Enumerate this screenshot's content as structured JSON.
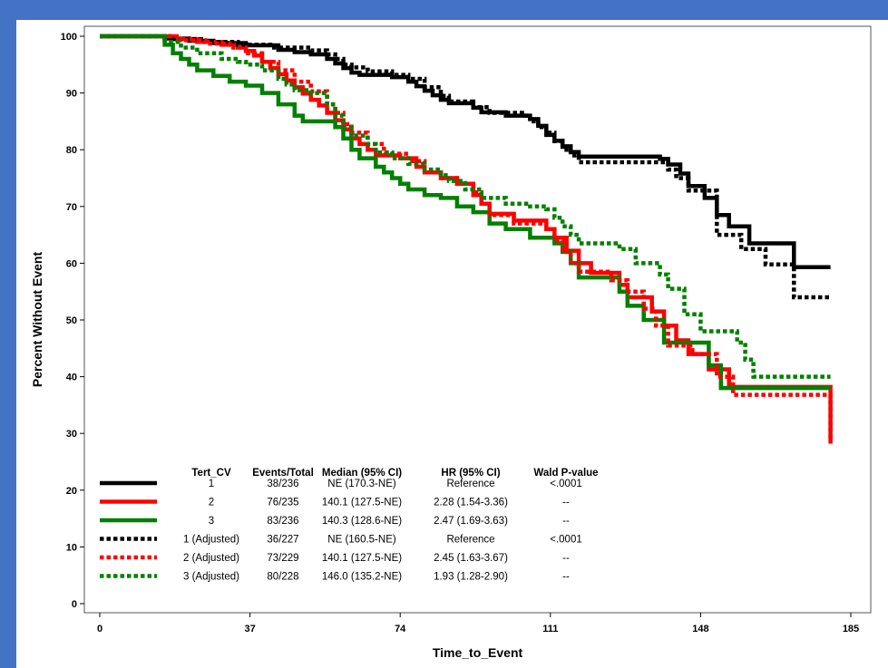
{
  "chart_data": {
    "type": "line",
    "title": "",
    "xlabel": "Time_to_Event",
    "ylabel": "Percent Without Event",
    "xlim": [
      0,
      185
    ],
    "ylim": [
      0,
      100
    ],
    "x_ticks": [
      "0",
      "37",
      "74",
      "111",
      "148",
      "185"
    ],
    "y_ticks": [
      "0",
      "10",
      "20",
      "30",
      "40",
      "50",
      "60",
      "70",
      "80",
      "90",
      "100"
    ],
    "grid": false,
    "legend_position": "bottom-left inside plot",
    "legend_headers": [
      "Tert_CV",
      "Events/Total",
      "Median (95% CI)",
      "HR (95% CI)",
      "Wald P-value"
    ],
    "series": [
      {
        "name": "1",
        "color": "#000000",
        "dash": "solid",
        "events_total": "38/236",
        "median": "NE (170.3-NE)",
        "hr": "Reference",
        "p": "<.0001",
        "points": [
          [
            0,
            100
          ],
          [
            10,
            100
          ],
          [
            16,
            99.6
          ],
          [
            22,
            99.2
          ],
          [
            28,
            98.8
          ],
          [
            36,
            98.4
          ],
          [
            44,
            97.6
          ],
          [
            48,
            97.2
          ],
          [
            52,
            96.8
          ],
          [
            56,
            96
          ],
          [
            58,
            95.2
          ],
          [
            60,
            94.4
          ],
          [
            62,
            93.6
          ],
          [
            64,
            93.2
          ],
          [
            72,
            92.8
          ],
          [
            76,
            92
          ],
          [
            78,
            91.2
          ],
          [
            80,
            90.4
          ],
          [
            82,
            89.6
          ],
          [
            84,
            88.8
          ],
          [
            86,
            88.2
          ],
          [
            92,
            87.4
          ],
          [
            94,
            86.6
          ],
          [
            100,
            86
          ],
          [
            106,
            85.4
          ],
          [
            108,
            84.2
          ],
          [
            110,
            82.6
          ],
          [
            112,
            81.6
          ],
          [
            114,
            80.6
          ],
          [
            116,
            79.6
          ],
          [
            118,
            78.8
          ],
          [
            138,
            78.4
          ],
          [
            140,
            77.4
          ],
          [
            143,
            75.8
          ],
          [
            145,
            73.6
          ],
          [
            149,
            71.5
          ],
          [
            152,
            68.5
          ],
          [
            155,
            66.5
          ],
          [
            160,
            63.5
          ],
          [
            171,
            59.3
          ],
          [
            180,
            59.3
          ]
        ]
      },
      {
        "name": "2",
        "color": "#ff0000",
        "dash": "solid",
        "events_total": "76/235",
        "median": "140.1 (127.5-NE)",
        "hr": "2.28 (1.54-3.36)",
        "p": "--",
        "points": [
          [
            0,
            100
          ],
          [
            14,
            100
          ],
          [
            18,
            99.5
          ],
          [
            24,
            99
          ],
          [
            30,
            98.5
          ],
          [
            34,
            98
          ],
          [
            36,
            97.4
          ],
          [
            38,
            96.6
          ],
          [
            40,
            95.5
          ],
          [
            42,
            94.4
          ],
          [
            44,
            93.3
          ],
          [
            46,
            92.2
          ],
          [
            48,
            91
          ],
          [
            50,
            89.9
          ],
          [
            52,
            88.8
          ],
          [
            54,
            87.8
          ],
          [
            56,
            86.5
          ],
          [
            58,
            85.2
          ],
          [
            60,
            83.6
          ],
          [
            62,
            82
          ],
          [
            64,
            81
          ],
          [
            66,
            80
          ],
          [
            68,
            79
          ],
          [
            74,
            78.5
          ],
          [
            78,
            77
          ],
          [
            80,
            76
          ],
          [
            84,
            75
          ],
          [
            88,
            74
          ],
          [
            92,
            72
          ],
          [
            94,
            70.5
          ],
          [
            96,
            68.7
          ],
          [
            102,
            67.5
          ],
          [
            110,
            66
          ],
          [
            112,
            64.5
          ],
          [
            115,
            62.2
          ],
          [
            118,
            60
          ],
          [
            121,
            58.3
          ],
          [
            128,
            56.2
          ],
          [
            130,
            54
          ],
          [
            136,
            51.5
          ],
          [
            139,
            49
          ],
          [
            142,
            46.4
          ],
          [
            145,
            44
          ],
          [
            150,
            41.3
          ],
          [
            155,
            38.2
          ],
          [
            180,
            38.2
          ],
          [
            180,
            28.2
          ]
        ]
      },
      {
        "name": "3",
        "color": "#008000",
        "dash": "solid",
        "events_total": "83/236",
        "median": "140.3 (128.6-NE)",
        "hr": "2.47 (1.69-3.63)",
        "p": "--",
        "points": [
          [
            0,
            100
          ],
          [
            14,
            100
          ],
          [
            16,
            98.5
          ],
          [
            18,
            97
          ],
          [
            20,
            96
          ],
          [
            22,
            95
          ],
          [
            24,
            94
          ],
          [
            28,
            93
          ],
          [
            32,
            92
          ],
          [
            36,
            91.3
          ],
          [
            40,
            90
          ],
          [
            44,
            88
          ],
          [
            48,
            86
          ],
          [
            50,
            85
          ],
          [
            58,
            84
          ],
          [
            60,
            82
          ],
          [
            62,
            80
          ],
          [
            64,
            78.5
          ],
          [
            68,
            77
          ],
          [
            70,
            76
          ],
          [
            72,
            75
          ],
          [
            74,
            74
          ],
          [
            76,
            73
          ],
          [
            80,
            72
          ],
          [
            84,
            71.5
          ],
          [
            88,
            70
          ],
          [
            92,
            69
          ],
          [
            96,
            67
          ],
          [
            100,
            66
          ],
          [
            106,
            64.5
          ],
          [
            112,
            63.5
          ],
          [
            114,
            62
          ],
          [
            116,
            60
          ],
          [
            118,
            57.5
          ],
          [
            128,
            55
          ],
          [
            130,
            52.5
          ],
          [
            134,
            50
          ],
          [
            139,
            46
          ],
          [
            148,
            46
          ],
          [
            150,
            42
          ],
          [
            153,
            38
          ],
          [
            180,
            38
          ]
        ]
      },
      {
        "name": "1 (Adjusted)",
        "color": "#000000",
        "dash": "dotted",
        "events_total": "36/227",
        "median": "NE (160.5-NE)",
        "hr": "Reference",
        "p": "<.0001",
        "points": [
          [
            0,
            100
          ],
          [
            10,
            100
          ],
          [
            18,
            99.5
          ],
          [
            26,
            99
          ],
          [
            34,
            98.5
          ],
          [
            42,
            98
          ],
          [
            52,
            97.5
          ],
          [
            56,
            96.8
          ],
          [
            58,
            96
          ],
          [
            60,
            95
          ],
          [
            62,
            94.5
          ],
          [
            66,
            93.8
          ],
          [
            72,
            93.2
          ],
          [
            76,
            92.5
          ],
          [
            80,
            91
          ],
          [
            84,
            89.5
          ],
          [
            86,
            88.5
          ],
          [
            92,
            87.5
          ],
          [
            96,
            86.5
          ],
          [
            104,
            86
          ],
          [
            106,
            85
          ],
          [
            108,
            84
          ],
          [
            110,
            83
          ],
          [
            112,
            81.5
          ],
          [
            114,
            80
          ],
          [
            116,
            79
          ],
          [
            118,
            77.8
          ],
          [
            138,
            77.8
          ],
          [
            140,
            76.5
          ],
          [
            142,
            75
          ],
          [
            145,
            72.8
          ],
          [
            152,
            65
          ],
          [
            158,
            62.5
          ],
          [
            164,
            59.8
          ],
          [
            171,
            54
          ],
          [
            180,
            54
          ]
        ]
      },
      {
        "name": "2 (Adjusted)",
        "color": "#ff0000",
        "dash": "dotted",
        "events_total": "73/229",
        "median": "140.1 (127.5-NE)",
        "hr": "2.45 (1.63-3.67)",
        "p": "--",
        "points": [
          [
            0,
            100
          ],
          [
            14,
            100
          ],
          [
            20,
            99.3
          ],
          [
            26,
            98.7
          ],
          [
            32,
            98
          ],
          [
            36,
            97
          ],
          [
            40,
            95.5
          ],
          [
            44,
            94
          ],
          [
            48,
            92
          ],
          [
            52,
            90.3
          ],
          [
            56,
            88
          ],
          [
            58,
            86.5
          ],
          [
            60,
            84.5
          ],
          [
            62,
            83
          ],
          [
            66,
            81
          ],
          [
            70,
            79.3
          ],
          [
            76,
            78
          ],
          [
            80,
            76.5
          ],
          [
            84,
            75
          ],
          [
            88,
            74
          ],
          [
            92,
            72.5
          ],
          [
            94,
            70.5
          ],
          [
            96,
            68.5
          ],
          [
            102,
            67
          ],
          [
            110,
            66
          ],
          [
            112,
            64
          ],
          [
            114,
            62
          ],
          [
            116,
            60
          ],
          [
            118,
            58.5
          ],
          [
            126,
            57
          ],
          [
            130,
            55
          ],
          [
            134,
            52
          ],
          [
            137,
            49
          ],
          [
            140,
            45.5
          ],
          [
            146,
            44
          ],
          [
            152,
            40
          ],
          [
            156,
            36.8
          ],
          [
            180,
            36.8
          ],
          [
            180,
            29
          ]
        ]
      },
      {
        "name": "3 (Adjusted)",
        "color": "#008000",
        "dash": "dotted",
        "events_total": "80/228",
        "median": "146.0 (135.2-NE)",
        "hr": "1.93 (1.28-2.90)",
        "p": "--",
        "points": [
          [
            0,
            100
          ],
          [
            14,
            100
          ],
          [
            16,
            99
          ],
          [
            20,
            98
          ],
          [
            24,
            97
          ],
          [
            30,
            96
          ],
          [
            34,
            95.5
          ],
          [
            36,
            95
          ],
          [
            40,
            94
          ],
          [
            44,
            92.5
          ],
          [
            46,
            91.5
          ],
          [
            48,
            90.5
          ],
          [
            52,
            90
          ],
          [
            56,
            88
          ],
          [
            58,
            86
          ],
          [
            60,
            84
          ],
          [
            62,
            82.5
          ],
          [
            66,
            81
          ],
          [
            68,
            79.5
          ],
          [
            72,
            78.5
          ],
          [
            76,
            77.5
          ],
          [
            80,
            76.5
          ],
          [
            84,
            75.5
          ],
          [
            86,
            74.5
          ],
          [
            90,
            73
          ],
          [
            94,
            71.5
          ],
          [
            100,
            70.5
          ],
          [
            106,
            70
          ],
          [
            110,
            69.5
          ],
          [
            112,
            68
          ],
          [
            114,
            66.5
          ],
          [
            116,
            65
          ],
          [
            118,
            63.5
          ],
          [
            128,
            62.5
          ],
          [
            132,
            60
          ],
          [
            138,
            58
          ],
          [
            140,
            55.5
          ],
          [
            144,
            51
          ],
          [
            148,
            48
          ],
          [
            156,
            48
          ],
          [
            157,
            46
          ],
          [
            159,
            43
          ],
          [
            161,
            40
          ],
          [
            180,
            40
          ]
        ]
      }
    ]
  }
}
